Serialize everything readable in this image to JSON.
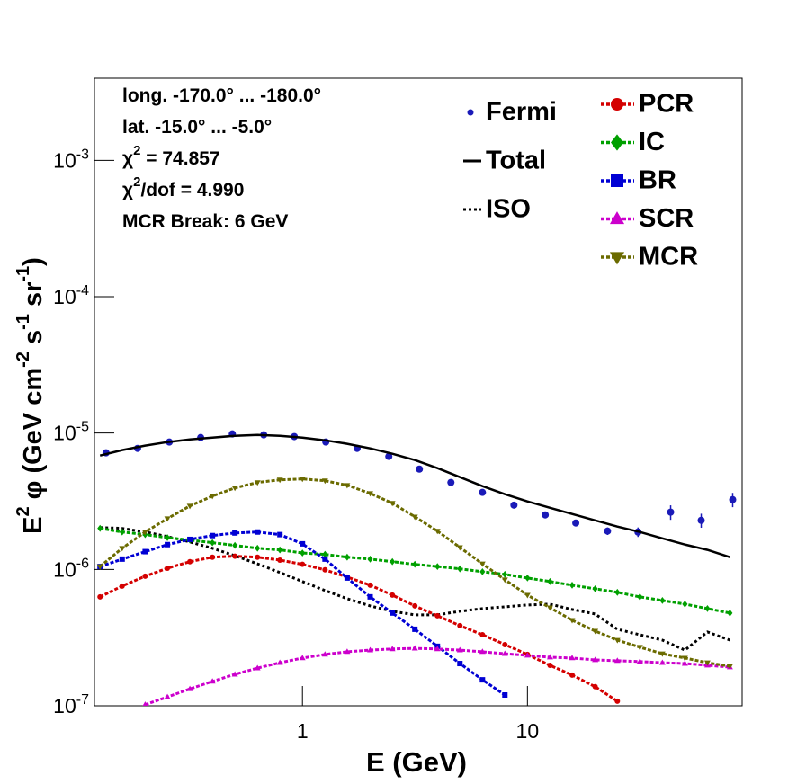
{
  "chart_data": {
    "type": "line",
    "log_x": true,
    "log_y": true,
    "xlabel": "E (GeV)",
    "ylabel": [
      {
        "text": "E"
      },
      {
        "sup": "2"
      },
      {
        "text": " φ (GeV cm"
      },
      {
        "sup": "-2"
      },
      {
        "text": " s"
      },
      {
        "sup": "-1"
      },
      {
        "text": " sr"
      },
      {
        "sup": "-1"
      },
      {
        "text": ")"
      }
    ],
    "xlim": [
      0.119,
      90
    ],
    "ylim": [
      1e-07,
      0.004
    ],
    "xticks": [
      1,
      10
    ],
    "yticks": [
      {
        "value": 1e-07,
        "label": [
          {
            "text": "10"
          },
          {
            "sup": "-7"
          }
        ]
      },
      {
        "value": 1e-06,
        "label": [
          {
            "text": "10"
          },
          {
            "sup": "-6"
          }
        ]
      },
      {
        "value": 1e-05,
        "label": [
          {
            "text": "10"
          },
          {
            "sup": "-5"
          }
        ]
      },
      {
        "value": 0.0001,
        "label": [
          {
            "text": "10"
          },
          {
            "sup": "-4"
          }
        ]
      },
      {
        "value": 0.001,
        "label": [
          {
            "text": "10"
          },
          {
            "sup": "-3"
          }
        ]
      }
    ],
    "annotations": [
      [
        {
          "text": "long. -170.0° ... -180.0°"
        }
      ],
      [
        {
          "text": "lat. -15.0° ... -5.0°"
        }
      ],
      [
        {
          "text": "χ"
        },
        {
          "sup": "2"
        },
        {
          "text": " = 74.857"
        }
      ],
      [
        {
          "text": "χ"
        },
        {
          "sup": "2"
        },
        {
          "text": "/dof = 4.990"
        }
      ],
      [
        {
          "text": "MCR Break:  6 GeV"
        }
      ]
    ],
    "x": [
      0.126,
      0.158,
      0.2,
      0.251,
      0.316,
      0.398,
      0.501,
      0.631,
      0.794,
      1,
      1.26,
      1.58,
      2,
      2.51,
      3.16,
      3.98,
      5.01,
      6.31,
      7.94,
      10,
      12.6,
      15.8,
      20,
      25.1,
      31.6,
      39.8,
      50.1,
      63.1,
      79.4
    ],
    "series": [
      {
        "name": "Fermi",
        "color": "#1a1ab8",
        "style": "points",
        "marker": "circle",
        "x": [
          0.134,
          0.185,
          0.256,
          0.353,
          0.488,
          0.673,
          0.92,
          1.27,
          1.75,
          2.42,
          3.31,
          4.57,
          6.31,
          8.71,
          12.0,
          16.4,
          22.7,
          31.0,
          43.3,
          59.2,
          81.7
        ],
        "values": [
          7.16e-06,
          7.72e-06,
          8.59e-06,
          9.27e-06,
          9.85e-06,
          9.7e-06,
          9.42e-06,
          8.59e-06,
          7.72e-06,
          6.74e-06,
          5.44e-06,
          4.34e-06,
          3.67e-06,
          2.96e-06,
          2.51e-06,
          2.19e-06,
          1.91e-06,
          1.88e-06,
          2.63e-06,
          2.29e-06,
          3.25e-06
        ],
        "errors": [
          1.4e-07,
          1.5e-07,
          1.7e-07,
          1.9e-07,
          2e-07,
          1.9e-07,
          1.9e-07,
          1.7e-07,
          1.5e-07,
          1.3e-07,
          1.1e-07,
          9e-08,
          8e-08,
          7e-08,
          8e-08,
          1.1e-07,
          1.2e-07,
          1.5e-07,
          3.2e-07,
          2.7e-07,
          3.9e-07
        ]
      },
      {
        "name": "Total",
        "color": "#000000",
        "style": "solid",
        "marker": "none",
        "values": [
          6.84e-06,
          7.5e-06,
          8.09e-06,
          8.59e-06,
          8.99e-06,
          9.27e-06,
          9.55e-06,
          9.7e-06,
          9.55e-06,
          9.27e-06,
          8.85e-06,
          8.34e-06,
          7.72e-06,
          7.05e-06,
          6.34e-06,
          5.53e-06,
          4.75e-06,
          4.08e-06,
          3.56e-06,
          3.15e-06,
          2.83e-06,
          2.55e-06,
          2.29e-06,
          2.06e-06,
          1.88e-06,
          1.69e-06,
          1.52e-06,
          1.39e-06,
          1.23e-06
        ]
      },
      {
        "name": "ISO",
        "color": "#000000",
        "style": "dotted",
        "marker": "none",
        "values": [
          2.03e-06,
          2e-06,
          1.88e-06,
          1.74e-06,
          1.59e-06,
          1.43e-06,
          1.26e-06,
          1.1e-06,
          9.48e-07,
          8.15e-07,
          7e-07,
          6.1e-07,
          5.4e-07,
          4.93e-07,
          4.64e-07,
          4.64e-07,
          4.93e-07,
          5.16e-07,
          5.32e-07,
          5.48e-07,
          5.57e-07,
          5.08e-07,
          4.71e-07,
          3.64e-07,
          3.32e-07,
          3.03e-07,
          2.56e-07,
          3.48e-07,
          3.03e-07
        ]
      },
      {
        "name": "PCR",
        "color": "#d40000",
        "style": "dashed",
        "marker": "circle",
        "values": [
          6.29e-07,
          7.55e-07,
          8.92e-07,
          1.02e-06,
          1.14e-06,
          1.23e-06,
          1.25e-06,
          1.23e-06,
          1.17e-06,
          1.09e-06,
          9.93e-07,
          8.79e-07,
          7.66e-07,
          6.48e-07,
          5.4e-07,
          4.57e-07,
          3.87e-07,
          3.32e-07,
          2.81e-07,
          2.38e-07,
          1.98e-07,
          1.68e-07,
          1.38e-07,
          1.08e-07,
          null,
          null,
          null,
          null,
          null
        ]
      },
      {
        "name": "IC",
        "color": "#00a000",
        "style": "dashed",
        "marker": "diamond",
        "values": [
          2e-06,
          1.88e-06,
          1.8e-06,
          1.71e-06,
          1.64e-06,
          1.57e-06,
          1.5e-06,
          1.43e-06,
          1.39e-06,
          1.32e-06,
          1.29e-06,
          1.23e-06,
          1.19e-06,
          1.14e-06,
          1.09e-06,
          1.05e-06,
          1.01e-06,
          9.62e-07,
          9.2e-07,
          8.65e-07,
          8.15e-07,
          7.66e-07,
          7.21e-07,
          6.79e-07,
          6.29e-07,
          5.92e-07,
          5.57e-07,
          5.16e-07,
          4.79e-07
        ]
      },
      {
        "name": "BR",
        "color": "#0000d4",
        "style": "dashed",
        "marker": "square",
        "values": [
          1.05e-06,
          1.19e-06,
          1.35e-06,
          1.52e-06,
          1.66e-06,
          1.77e-06,
          1.85e-06,
          1.88e-06,
          1.8e-06,
          1.54e-06,
          1.19e-06,
          8.65e-07,
          6.29e-07,
          4.79e-07,
          3.64e-07,
          2.73e-07,
          2.04e-07,
          1.55e-07,
          1.2e-07,
          null,
          null,
          null,
          null,
          null,
          null,
          null,
          null,
          null,
          null
        ]
      },
      {
        "name": "SCR",
        "color": "#cc00cc",
        "style": "dashed",
        "marker": "triangle-up",
        "values": [
          null,
          null,
          1.02e-07,
          1.16e-07,
          1.33e-07,
          1.51e-07,
          1.7e-07,
          1.89e-07,
          2.07e-07,
          2.24e-07,
          2.38e-07,
          2.49e-07,
          2.56e-07,
          2.61e-07,
          2.64e-07,
          2.61e-07,
          2.56e-07,
          2.49e-07,
          2.41e-07,
          2.34e-07,
          2.27e-07,
          2.24e-07,
          2.17e-07,
          2.14e-07,
          2.11e-07,
          2.07e-07,
          2.04e-07,
          1.98e-07,
          1.92e-07
        ]
      },
      {
        "name": "MCR",
        "color": "#6b6b00",
        "style": "dashed",
        "marker": "triangle-down",
        "values": [
          1.05e-06,
          1.43e-06,
          1.88e-06,
          2.36e-06,
          2.92e-06,
          3.45e-06,
          3.96e-06,
          4.34e-06,
          4.54e-06,
          4.61e-06,
          4.47e-06,
          4.14e-06,
          3.61e-06,
          3.06e-06,
          2.43e-06,
          1.91e-06,
          1.45e-06,
          1.1e-06,
          8.4e-07,
          6.48e-07,
          5.24e-07,
          4.24e-07,
          3.53e-07,
          3.03e-07,
          2.69e-07,
          2.41e-07,
          2.24e-07,
          2.07e-07,
          1.95e-07
        ]
      }
    ]
  }
}
